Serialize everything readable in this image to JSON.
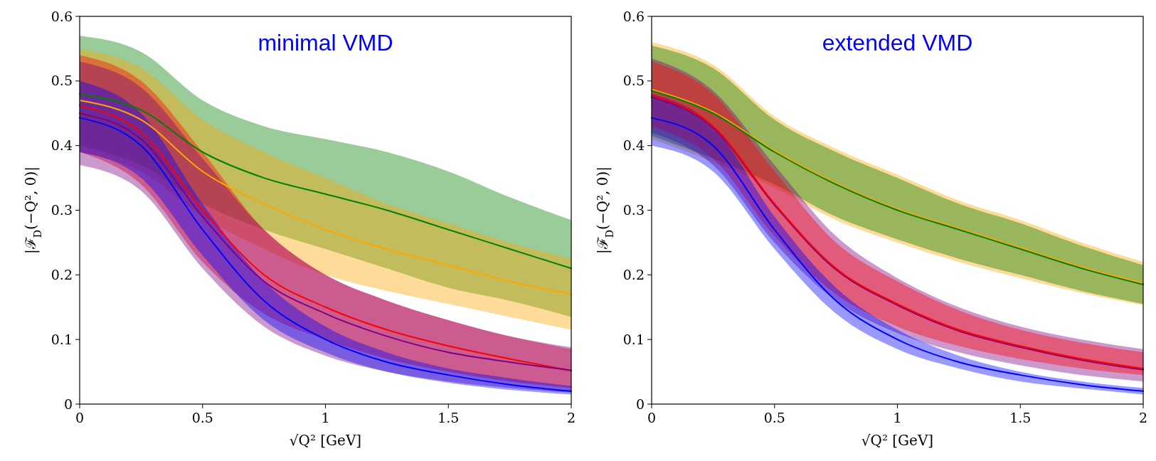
{
  "chart_data": [
    {
      "type": "line",
      "title": "minimal VMD",
      "xlabel": "√Q² [GeV]",
      "ylabel": "|ℱ$_{D}$(−Q², 0)|",
      "x": [
        0,
        0.25,
        0.5,
        0.75,
        1,
        1.25,
        1.5,
        1.75,
        2
      ],
      "xlim": [
        0,
        2
      ],
      "ylim": [
        0,
        0.6
      ],
      "xticks": [
        0,
        0.5,
        1,
        1.5,
        2
      ],
      "yticks": [
        0,
        0.1,
        0.2,
        0.3,
        0.4,
        0.5,
        0.6
      ],
      "grid": false,
      "series": [
        {
          "color": "#008000",
          "values": [
            0.48,
            0.455,
            0.39,
            0.35,
            0.325,
            0.3,
            0.27,
            0.24,
            0.21
          ],
          "upper": [
            0.57,
            0.545,
            0.47,
            0.43,
            0.41,
            0.39,
            0.36,
            0.32,
            0.285
          ],
          "lower": [
            0.4,
            0.37,
            0.31,
            0.27,
            0.24,
            0.21,
            0.18,
            0.16,
            0.135
          ]
        },
        {
          "color": "#ffa500",
          "values": [
            0.47,
            0.44,
            0.36,
            0.31,
            0.27,
            0.24,
            0.215,
            0.19,
            0.17
          ],
          "upper": [
            0.55,
            0.52,
            0.44,
            0.39,
            0.35,
            0.31,
            0.28,
            0.25,
            0.225
          ],
          "lower": [
            0.39,
            0.36,
            0.29,
            0.24,
            0.2,
            0.175,
            0.155,
            0.135,
            0.115
          ]
        },
        {
          "color": "#ff0000",
          "values": [
            0.462,
            0.42,
            0.3,
            0.2,
            0.15,
            0.115,
            0.09,
            0.07,
            0.052
          ],
          "upper": [
            0.54,
            0.5,
            0.39,
            0.27,
            0.2,
            0.16,
            0.13,
            0.105,
            0.085
          ],
          "lower": [
            0.39,
            0.34,
            0.22,
            0.14,
            0.1,
            0.07,
            0.05,
            0.035,
            0.025
          ]
        },
        {
          "color": "#800080",
          "values": [
            0.45,
            0.41,
            0.29,
            0.19,
            0.14,
            0.105,
            0.08,
            0.065,
            0.052
          ],
          "upper": [
            0.53,
            0.49,
            0.38,
            0.27,
            0.2,
            0.16,
            0.13,
            0.105,
            0.088
          ],
          "lower": [
            0.37,
            0.33,
            0.21,
            0.12,
            0.075,
            0.05,
            0.035,
            0.025,
            0.018
          ]
        },
        {
          "color": "#0000ff",
          "values": [
            0.443,
            0.4,
            0.27,
            0.16,
            0.1,
            0.065,
            0.045,
            0.03,
            0.02
          ],
          "upper": [
            0.5,
            0.45,
            0.31,
            0.19,
            0.12,
            0.08,
            0.055,
            0.04,
            0.028
          ],
          "lower": [
            0.39,
            0.35,
            0.23,
            0.13,
            0.08,
            0.05,
            0.033,
            0.022,
            0.015
          ]
        }
      ]
    },
    {
      "type": "line",
      "title": "extended VMD",
      "xlabel": "√Q² [GeV]",
      "ylabel": "|ℱ$_{D}$(−Q², 0)|",
      "x": [
        0,
        0.25,
        0.5,
        0.75,
        1,
        1.25,
        1.5,
        1.75,
        2
      ],
      "xlim": [
        0,
        2
      ],
      "ylim": [
        0,
        0.6
      ],
      "xticks": [
        0,
        0.5,
        1,
        1.5,
        2
      ],
      "yticks": [
        0,
        0.1,
        0.2,
        0.3,
        0.4,
        0.5,
        0.6
      ],
      "grid": false,
      "series": [
        {
          "color": "#ffa500",
          "values": [
            0.487,
            0.452,
            0.392,
            0.342,
            0.302,
            0.272,
            0.242,
            0.212,
            0.187
          ],
          "upper": [
            0.56,
            0.525,
            0.445,
            0.395,
            0.355,
            0.315,
            0.285,
            0.25,
            0.22
          ],
          "lower": [
            0.41,
            0.375,
            0.335,
            0.285,
            0.25,
            0.22,
            0.195,
            0.172,
            0.153
          ]
        },
        {
          "color": "#008000",
          "values": [
            0.485,
            0.45,
            0.39,
            0.34,
            0.3,
            0.27,
            0.24,
            0.21,
            0.185
          ],
          "upper": [
            0.555,
            0.52,
            0.44,
            0.39,
            0.35,
            0.31,
            0.28,
            0.245,
            0.215
          ],
          "lower": [
            0.415,
            0.38,
            0.34,
            0.29,
            0.255,
            0.225,
            0.2,
            0.175,
            0.155
          ]
        },
        {
          "color": "#800080",
          "values": [
            0.475,
            0.428,
            0.308,
            0.208,
            0.153,
            0.113,
            0.088,
            0.068,
            0.053
          ],
          "upper": [
            0.535,
            0.485,
            0.37,
            0.26,
            0.195,
            0.15,
            0.12,
            0.1,
            0.085
          ],
          "lower": [
            0.42,
            0.37,
            0.25,
            0.16,
            0.11,
            0.08,
            0.06,
            0.045,
            0.035
          ]
        },
        {
          "color": "#ff0000",
          "values": [
            0.478,
            0.43,
            0.31,
            0.21,
            0.155,
            0.115,
            0.09,
            0.07,
            0.055
          ],
          "upper": [
            0.53,
            0.48,
            0.36,
            0.25,
            0.19,
            0.145,
            0.115,
            0.095,
            0.08
          ],
          "lower": [
            0.43,
            0.38,
            0.26,
            0.17,
            0.12,
            0.09,
            0.07,
            0.055,
            0.045
          ]
        },
        {
          "color": "#0000ff",
          "values": [
            0.443,
            0.4,
            0.27,
            0.16,
            0.1,
            0.065,
            0.045,
            0.03,
            0.02
          ],
          "upper": [
            0.48,
            0.43,
            0.29,
            0.18,
            0.115,
            0.075,
            0.05,
            0.035,
            0.025
          ],
          "lower": [
            0.4,
            0.36,
            0.24,
            0.14,
            0.085,
            0.055,
            0.035,
            0.024,
            0.015
          ]
        }
      ]
    }
  ]
}
